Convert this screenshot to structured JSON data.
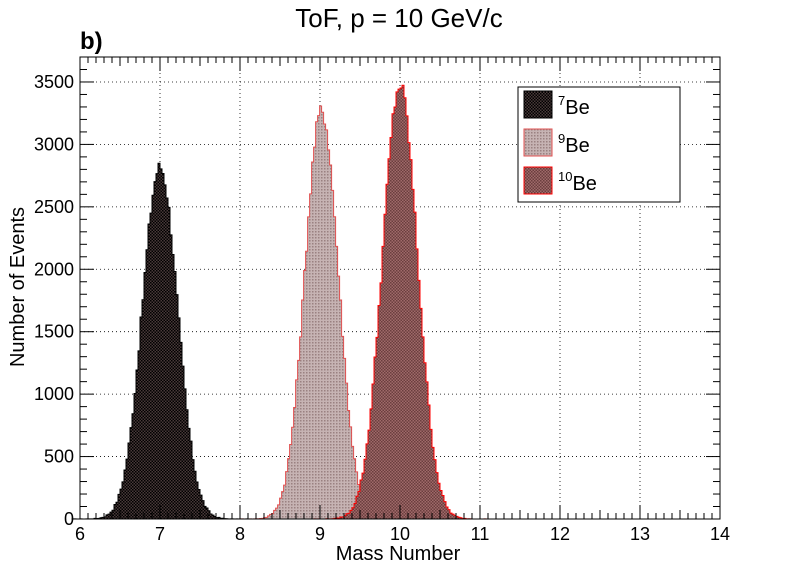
{
  "chart_data": {
    "type": "histogram",
    "title": "ToF, p = 10 GeV/c",
    "panel_label": "b)",
    "xlabel": "Mass Number",
    "ylabel": "Number of Events",
    "xlim": [
      6,
      14
    ],
    "ylim": [
      0,
      3700
    ],
    "x_ticks": [
      "6",
      "7",
      "8",
      "9",
      "10",
      "11",
      "12",
      "13",
      "14"
    ],
    "y_ticks": [
      "0",
      "500",
      "1000",
      "1500",
      "2000",
      "2500",
      "3000",
      "3500"
    ],
    "grid": true,
    "legend_position": "top-right",
    "series": [
      {
        "name_prefix": "7",
        "name_suffix": "Be",
        "mean": 7.0,
        "sigma": 0.22,
        "peak": 2820,
        "line_color": "#000000",
        "fill_color": "#2e1e1e",
        "fill_pattern": "checker"
      },
      {
        "name_prefix": "9",
        "name_suffix": "Be",
        "mean": 9.02,
        "sigma": 0.21,
        "peak": 3270,
        "line_color": "#e05050",
        "fill_color": "#b9a3a3",
        "fill_pattern": "hatch"
      },
      {
        "name_prefix": "10",
        "name_suffix": "Be",
        "mean": 10.0,
        "sigma": 0.22,
        "peak": 3470,
        "line_color": "#ff0000",
        "fill_color": "#8e5f5f",
        "fill_pattern": "checker-red"
      }
    ]
  }
}
